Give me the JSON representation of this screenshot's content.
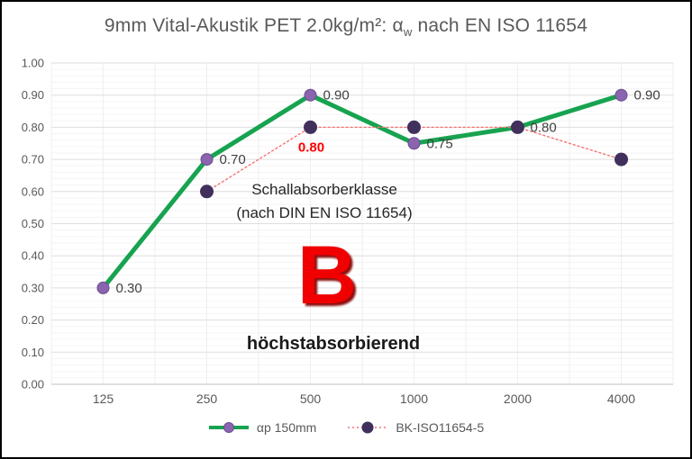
{
  "title": {
    "part1": "9mm Vital-Akustik PET 2.0kg/m²: α",
    "sub": "w",
    "part2": " nach EN ISO 11654"
  },
  "chart_data": {
    "type": "line",
    "categories": [
      "125",
      "250",
      "500",
      "1000",
      "2000",
      "4000"
    ],
    "ylim": [
      0,
      1
    ],
    "ytick_step": 0.1,
    "yticks": [
      "0.00",
      "0.10",
      "0.20",
      "0.30",
      "0.40",
      "0.50",
      "0.60",
      "0.70",
      "0.80",
      "0.90",
      "1.00"
    ],
    "grid": {
      "major_color": "#dedede",
      "minor_color": "#f5f5f5",
      "vertical_color": "#efefef",
      "axis_color": "#bfbfbf"
    },
    "legend_position": "bottom",
    "series": [
      {
        "name": "αp 150mm",
        "values": [
          0.3,
          0.7,
          0.9,
          0.75,
          0.8,
          0.9
        ],
        "labels": [
          "0.30",
          "0.70",
          "0.90",
          "0.75",
          "0.80",
          "0.90"
        ],
        "color": "#17a350",
        "marker_color": "#8a64ae",
        "marker_edge": "#6a4c8f",
        "line_width": 5,
        "dash": null,
        "marker_radius": 6.5,
        "label_side": "right",
        "label_color": "#404040",
        "label_bold": false
      },
      {
        "name": "BK-ISO11654-5",
        "values": [
          null,
          0.6,
          0.8,
          0.8,
          0.8,
          0.7
        ],
        "labels": [
          null,
          null,
          "0.80",
          null,
          null,
          null
        ],
        "color": "#f87171",
        "marker_color": "#41305c",
        "marker_edge": "#41305c",
        "line_width": 1.4,
        "dash": "2 3",
        "marker_radius": 7,
        "label_side": "below",
        "label_color": "#fe0000",
        "label_bold": true
      }
    ]
  },
  "annotations": {
    "class_label_line1": "Schallabsorberklasse",
    "class_label_line2": "(nach DIN EN ISO 11654)",
    "class_letter": "B",
    "class_description": "höchstabsorbierend"
  },
  "colors": {
    "title_text": "#595959",
    "tick_text": "#595959",
    "class_letter": "#f00000",
    "class_text": "#1a1a1a"
  }
}
